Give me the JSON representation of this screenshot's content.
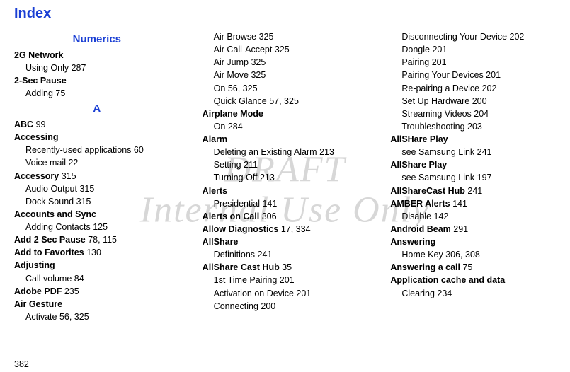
{
  "title": "Index",
  "watermark_line1": "DRAFT",
  "watermark_line2": "Internal Use Only",
  "page_number": "382",
  "sections": {
    "numerics_label": "Numerics",
    "a_label": "A"
  },
  "col1": [
    {
      "type": "section",
      "bind": "sections.numerics_label"
    },
    {
      "type": "bold",
      "text": "2G Network"
    },
    {
      "type": "sub",
      "text": "Using Only",
      "page": "287"
    },
    {
      "type": "bold",
      "text": "2-Sec Pause"
    },
    {
      "type": "sub",
      "text": "Adding",
      "page": "75"
    },
    {
      "type": "section",
      "bind": "sections.a_label"
    },
    {
      "type": "boldpage",
      "text": "ABC",
      "page": "99"
    },
    {
      "type": "bold",
      "text": "Accessing"
    },
    {
      "type": "sub",
      "text": "Recently-used applications",
      "page": "60"
    },
    {
      "type": "sub",
      "text": "Voice mail",
      "page": "22"
    },
    {
      "type": "boldpage",
      "text": "Accessory",
      "page": "315"
    },
    {
      "type": "sub",
      "text": "Audio Output",
      "page": "315"
    },
    {
      "type": "sub",
      "text": "Dock Sound",
      "page": "315"
    },
    {
      "type": "bold",
      "text": "Accounts and Sync"
    },
    {
      "type": "sub",
      "text": "Adding Contacts",
      "page": "125"
    },
    {
      "type": "boldpage",
      "text": "Add 2 Sec Pause",
      "page": "78, 115"
    },
    {
      "type": "boldpage",
      "text": "Add to Favorites",
      "page": "130"
    },
    {
      "type": "bold",
      "text": "Adjusting"
    },
    {
      "type": "sub",
      "text": "Call volume",
      "page": "84"
    },
    {
      "type": "boldpage",
      "text": "Adobe PDF",
      "page": "235"
    },
    {
      "type": "bold",
      "text": "Air Gesture"
    },
    {
      "type": "sub",
      "text": "Activate",
      "page": "56, 325"
    }
  ],
  "col2": [
    {
      "type": "sub",
      "text": "Air Browse",
      "page": "325"
    },
    {
      "type": "sub",
      "text": "Air Call-Accept",
      "page": "325"
    },
    {
      "type": "sub",
      "text": "Air Jump",
      "page": "325"
    },
    {
      "type": "sub",
      "text": "Air Move",
      "page": "325"
    },
    {
      "type": "sub",
      "text": "On",
      "page": "56, 325"
    },
    {
      "type": "sub",
      "text": "Quick Glance",
      "page": "57, 325"
    },
    {
      "type": "bold",
      "text": "Airplane Mode"
    },
    {
      "type": "sub",
      "text": "On",
      "page": "284"
    },
    {
      "type": "bold",
      "text": "Alarm"
    },
    {
      "type": "sub",
      "text": "Deleting an Existing Alarm",
      "page": "213"
    },
    {
      "type": "sub",
      "text": "Setting",
      "page": "211"
    },
    {
      "type": "sub",
      "text": "Turning Off",
      "page": "213"
    },
    {
      "type": "bold",
      "text": "Alerts"
    },
    {
      "type": "sub",
      "text": "Presidential",
      "page": "141"
    },
    {
      "type": "boldpage",
      "text": "Alerts on Call",
      "page": "306"
    },
    {
      "type": "boldpage",
      "text": "Allow Diagnostics",
      "page": "17, 334"
    },
    {
      "type": "bold",
      "text": "AllShare"
    },
    {
      "type": "sub",
      "text": "Definitions",
      "page": "241"
    },
    {
      "type": "boldpage",
      "text": "AllShare Cast Hub",
      "page": "35"
    },
    {
      "type": "sub",
      "text": "1st Time Pairing",
      "page": "201"
    },
    {
      "type": "sub",
      "text": "Activation on Device",
      "page": "201"
    },
    {
      "type": "sub",
      "text": "Connecting",
      "page": "200"
    }
  ],
  "col3": [
    {
      "type": "sub",
      "text": "Disconnecting Your Device",
      "page": "202"
    },
    {
      "type": "sub",
      "text": "Dongle",
      "page": "201"
    },
    {
      "type": "sub",
      "text": "Pairing",
      "page": "201"
    },
    {
      "type": "sub",
      "text": "Pairing Your Devices",
      "page": "201"
    },
    {
      "type": "sub",
      "text": "Re-pairing a Device",
      "page": "202"
    },
    {
      "type": "sub",
      "text": "Set Up Hardware",
      "page": "200"
    },
    {
      "type": "sub",
      "text": "Streaming Videos",
      "page": "204"
    },
    {
      "type": "sub",
      "text": "Troubleshooting",
      "page": "203"
    },
    {
      "type": "bold",
      "text": "AllSHare Play"
    },
    {
      "type": "sub",
      "text": "see Samsung Link",
      "page": "241"
    },
    {
      "type": "bold",
      "text": "AllShare Play"
    },
    {
      "type": "sub",
      "text": "see Samsung Link",
      "page": "197"
    },
    {
      "type": "boldpage",
      "text": "AllShareCast Hub",
      "page": "241"
    },
    {
      "type": "boldpage",
      "text": "AMBER Alerts",
      "page": "141"
    },
    {
      "type": "sub",
      "text": "Disable",
      "page": "142"
    },
    {
      "type": "boldpage",
      "text": "Android Beam",
      "page": "291"
    },
    {
      "type": "bold",
      "text": "Answering"
    },
    {
      "type": "sub",
      "text": "Home Key",
      "page": "306, 308"
    },
    {
      "type": "boldpage",
      "text": "Answering a call",
      "page": "75"
    },
    {
      "type": "bold",
      "text": "Application cache and data"
    },
    {
      "type": "sub",
      "text": "Clearing",
      "page": "234"
    }
  ]
}
